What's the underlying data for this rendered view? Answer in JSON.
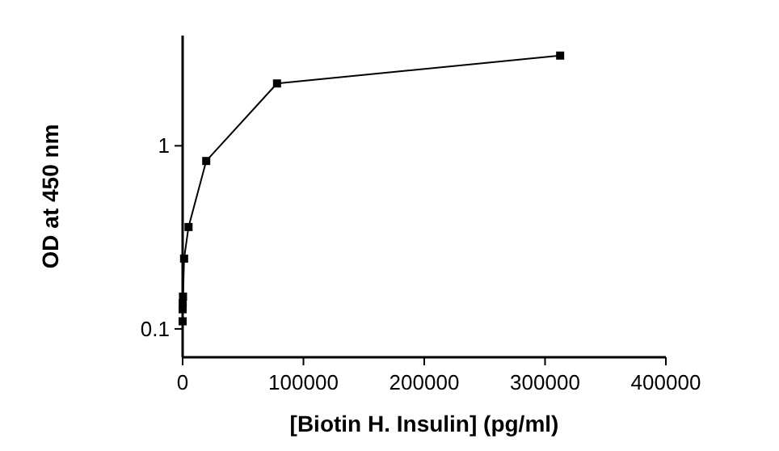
{
  "chart_data": {
    "type": "line",
    "xlabel": "[Biotin H. Insulin] (pg/ml)",
    "ylabel": "OD at 450 nm",
    "x": [
      0,
      19,
      76,
      305,
      1221,
      4883,
      19531,
      78125,
      312500
    ],
    "series": [
      {
        "color": "#000000",
        "values": [
          0.11,
          0.128,
          0.138,
          0.15,
          0.242,
          0.36,
          0.826,
          2.19,
          3.11
        ]
      }
    ],
    "xlim": [
      0,
      400000
    ],
    "xticks": [
      0,
      100000,
      200000,
      300000,
      400000
    ],
    "ylim": [
      0.07,
      4
    ],
    "yticks": [
      0.1,
      1
    ],
    "log": "y",
    "marker": "square",
    "line_style": "solid",
    "grid": false
  }
}
